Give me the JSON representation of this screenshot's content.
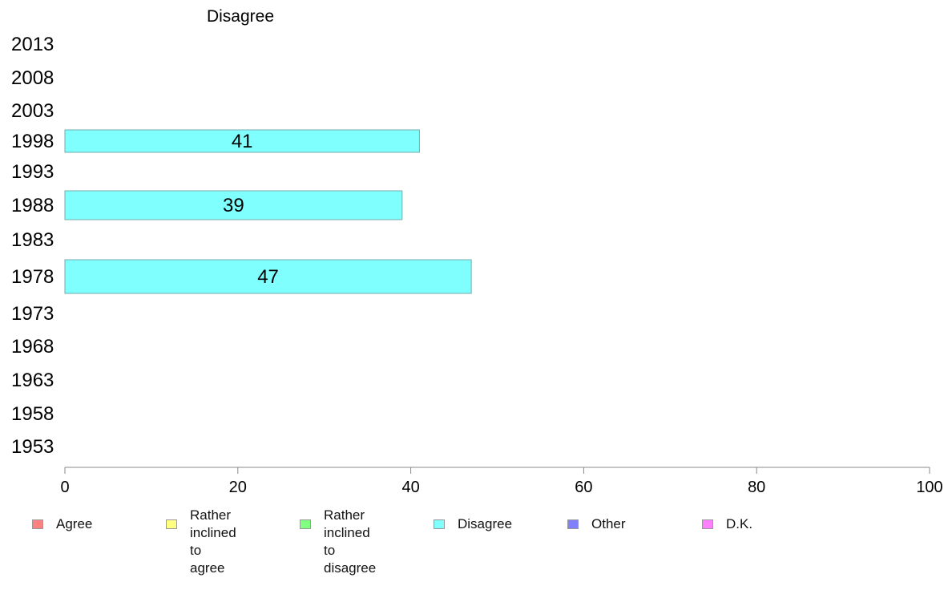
{
  "chart_data": {
    "type": "bar",
    "orientation": "horizontal",
    "title": "Disagree",
    "categories": [
      "2013",
      "2008",
      "2003",
      "1998",
      "1993",
      "1988",
      "1983",
      "1978",
      "1973",
      "1968",
      "1963",
      "1958",
      "1953"
    ],
    "series": [
      {
        "name": "Disagree",
        "color": "#80ffff",
        "values": [
          null,
          null,
          null,
          41,
          null,
          39,
          null,
          47,
          null,
          null,
          null,
          null,
          null
        ]
      }
    ],
    "xlim": [
      0,
      100
    ],
    "xticks": [
      0,
      20,
      40,
      60,
      80,
      100
    ],
    "grid": false,
    "legend_position": "bottom"
  },
  "legend": [
    {
      "label": "Agree",
      "color": "#ff8080"
    },
    {
      "label": "Rather inclined\nto agree",
      "color": "#ffff80"
    },
    {
      "label": "Rather inclined\nto disagree",
      "color": "#80ff80"
    },
    {
      "label": "Disagree",
      "color": "#80ffff"
    },
    {
      "label": "Other",
      "color": "#8080ff"
    },
    {
      "label": "D.K.",
      "color": "#ff80ff"
    }
  ]
}
